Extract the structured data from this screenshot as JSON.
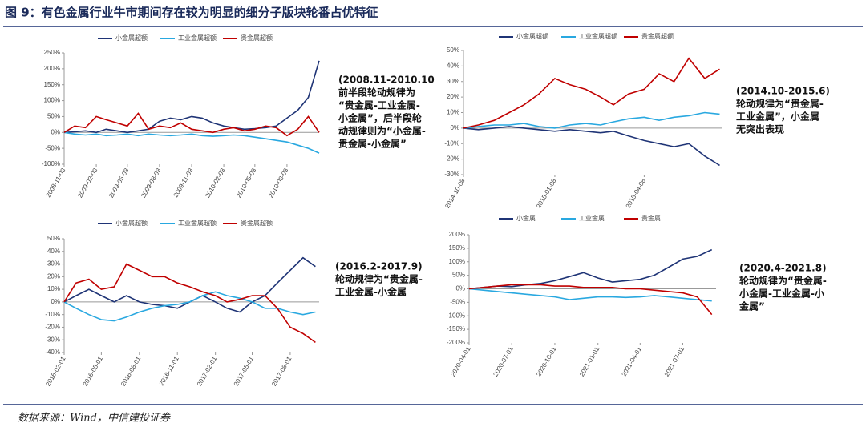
{
  "title": "图 9：有色金属行业牛市期间存在较为明显的细分子版块轮番占优特征",
  "source": "数据来源：Wind，中信建投证券",
  "chart_data": [
    {
      "type": "line",
      "x": [
        "2008-11-03",
        "2008-12-03",
        "2009-01-03",
        "2009-02-03",
        "2009-03-03",
        "2009-04-03",
        "2009-05-03",
        "2009-06-03",
        "2009-07-03",
        "2009-08-03",
        "2009-09-03",
        "2009-10-03",
        "2009-11-03",
        "2009-12-03",
        "2010-01-03",
        "2010-02-03",
        "2010-03-03",
        "2010-04-03",
        "2010-05-03",
        "2010-06-03",
        "2010-07-03",
        "2010-08-03",
        "2010-09-03",
        "2010-10-03",
        "2010-11-03"
      ],
      "xlim": [
        "2008-11-03",
        "2010-11-03"
      ],
      "xticks": [
        "2008-11-03",
        "2009-02-03",
        "2009-05-03",
        "2009-08-03",
        "2009-11-03",
        "2010-02-03",
        "2010-05-03",
        "2010-08-03"
      ],
      "ylim": [
        -100,
        250
      ],
      "yticks": [
        {
          "value": -100,
          "label": "-100%"
        },
        {
          "value": -50,
          "label": "-50%"
        },
        {
          "value": 0,
          "label": "0%"
        },
        {
          "value": 50,
          "label": "50%"
        },
        {
          "value": 100,
          "label": "100%"
        },
        {
          "value": 150,
          "label": "150%"
        },
        {
          "value": 200,
          "label": "200%"
        },
        {
          "value": 250,
          "label": "250%"
        }
      ],
      "series": [
        {
          "name": "小金属超额",
          "color": "#1f3476",
          "values": [
            0,
            2,
            5,
            0,
            10,
            5,
            0,
            5,
            10,
            35,
            45,
            40,
            50,
            45,
            30,
            20,
            15,
            10,
            12,
            15,
            20,
            45,
            70,
            110,
            225
          ]
        },
        {
          "name": "工业金属超额",
          "color": "#29a8e0",
          "values": [
            0,
            -5,
            -8,
            -5,
            -10,
            -8,
            -5,
            -10,
            -5,
            -8,
            -10,
            -8,
            -5,
            -10,
            -12,
            -10,
            -8,
            -10,
            -15,
            -20,
            -25,
            -30,
            -40,
            -50,
            -65
          ]
        },
        {
          "name": "贵金属超额",
          "color": "#c00000",
          "values": [
            0,
            20,
            15,
            50,
            40,
            30,
            20,
            60,
            10,
            20,
            15,
            30,
            10,
            5,
            0,
            10,
            15,
            5,
            10,
            20,
            15,
            -10,
            10,
            50,
            0
          ]
        }
      ],
      "annotation": [
        "(2008.11-2010.10",
        "前半段轮动规律为",
        "“贵金属-工业金属-",
        "小金属”，后半段轮",
        "动规律则为“小金属-",
        "贵金属-小金属”"
      ]
    },
    {
      "type": "line",
      "x": [
        "2014-10-08",
        "2014-10-23",
        "2014-11-08",
        "2014-11-23",
        "2014-12-08",
        "2014-12-23",
        "2015-01-08",
        "2015-01-23",
        "2015-02-08",
        "2015-02-23",
        "2015-03-08",
        "2015-03-23",
        "2015-04-08",
        "2015-04-23",
        "2015-05-08",
        "2015-05-23",
        "2015-06-08",
        "2015-06-23"
      ],
      "xlim": [
        "2014-10-08",
        "2015-06-25"
      ],
      "xticks": [
        "2014-10-08",
        "2015-01-08",
        "2015-04-08"
      ],
      "ylim": [
        -30,
        50
      ],
      "yticks": [
        {
          "value": -30,
          "label": "-30%"
        },
        {
          "value": -20,
          "label": "-20%"
        },
        {
          "value": -10,
          "label": "-10%"
        },
        {
          "value": 0,
          "label": "0%"
        },
        {
          "value": 10,
          "label": "10%"
        },
        {
          "value": 20,
          "label": "20%"
        },
        {
          "value": 30,
          "label": "30%"
        },
        {
          "value": 40,
          "label": "40%"
        },
        {
          "value": 50,
          "label": "50%"
        }
      ],
      "series": [
        {
          "name": "小金属超额",
          "color": "#1f3476",
          "values": [
            0,
            -1,
            0,
            1,
            0,
            -1,
            -2,
            -1,
            -2,
            -3,
            -2,
            -5,
            -8,
            -10,
            -12,
            -10,
            -18,
            -24
          ]
        },
        {
          "name": "工业金属超额",
          "color": "#29a8e0",
          "values": [
            0,
            1,
            2,
            2,
            3,
            1,
            0,
            2,
            3,
            2,
            4,
            6,
            7,
            5,
            7,
            8,
            10,
            9
          ]
        },
        {
          "name": "贵金属超额",
          "color": "#c00000",
          "values": [
            0,
            2,
            5,
            10,
            15,
            22,
            32,
            28,
            25,
            20,
            15,
            22,
            25,
            35,
            30,
            45,
            32,
            38
          ]
        }
      ],
      "annotation": [
        "(2014.10-2015.6)",
        "轮动规律为“贵金属-",
        "工业金属”，小金属",
        "无突出表现"
      ]
    },
    {
      "type": "line",
      "x": [
        "2016-02-01",
        "2016-03-01",
        "2016-04-01",
        "2016-05-01",
        "2016-06-01",
        "2016-07-01",
        "2016-08-01",
        "2016-09-01",
        "2016-10-01",
        "2016-11-01",
        "2016-12-01",
        "2017-01-01",
        "2017-02-01",
        "2017-03-01",
        "2017-04-01",
        "2017-05-01",
        "2017-06-01",
        "2017-07-01",
        "2017-08-01",
        "2017-09-01",
        "2017-10-01"
      ],
      "xlim": [
        "2016-02-01",
        "2017-10-10"
      ],
      "xticks": [
        "2016-02-01",
        "2016-05-01",
        "2016-08-01",
        "2016-11-01",
        "2017-02-01",
        "2017-05-01",
        "2017-08-01"
      ],
      "ylim": [
        -40,
        50
      ],
      "yticks": [
        {
          "value": -40,
          "label": "-40%"
        },
        {
          "value": -30,
          "label": "-30%"
        },
        {
          "value": -20,
          "label": "-20%"
        },
        {
          "value": -10,
          "label": "-10%"
        },
        {
          "value": 0,
          "label": "0%"
        },
        {
          "value": 10,
          "label": "10%"
        },
        {
          "value": 20,
          "label": "20%"
        },
        {
          "value": 30,
          "label": "30%"
        },
        {
          "value": 40,
          "label": "40%"
        },
        {
          "value": 50,
          "label": "50%"
        }
      ],
      "series": [
        {
          "name": "小金属超额",
          "color": "#1f3476",
          "values": [
            0,
            5,
            10,
            5,
            0,
            5,
            0,
            -2,
            -3,
            -5,
            0,
            5,
            0,
            -5,
            -8,
            0,
            5,
            15,
            25,
            35,
            28
          ]
        },
        {
          "name": "工业金属超额",
          "color": "#29a8e0",
          "values": [
            0,
            -5,
            -10,
            -14,
            -15,
            -12,
            -8,
            -5,
            -3,
            -2,
            0,
            5,
            8,
            5,
            3,
            0,
            -5,
            -5,
            -8,
            -10,
            -8
          ]
        },
        {
          "name": "贵金属超额",
          "color": "#c00000",
          "values": [
            0,
            15,
            18,
            10,
            12,
            30,
            25,
            20,
            20,
            15,
            12,
            8,
            5,
            0,
            2,
            5,
            5,
            -5,
            -20,
            -25,
            -32
          ]
        }
      ],
      "annotation": [
        "(2016.2-2017.9)",
        "轮动规律为“贵金属-",
        "工业金属-小金属"
      ]
    },
    {
      "type": "line",
      "x": [
        "2020-04-01",
        "2020-05-01",
        "2020-06-01",
        "2020-07-01",
        "2020-08-01",
        "2020-09-01",
        "2020-10-01",
        "2020-11-01",
        "2020-12-01",
        "2021-01-01",
        "2021-02-01",
        "2021-03-01",
        "2021-04-01",
        "2021-05-01",
        "2021-06-01",
        "2021-07-01",
        "2021-08-01",
        "2021-09-01"
      ],
      "xlim": [
        "2020-04-01",
        "2021-09-10"
      ],
      "xticks": [
        "2020-04-01",
        "2020-07-01",
        "2020-10-01",
        "2021-01-01",
        "2021-04-01",
        "2021-07-01"
      ],
      "ylim": [
        -200,
        200
      ],
      "yticks": [
        {
          "value": -200,
          "label": "-200%"
        },
        {
          "value": -150,
          "label": "-150%"
        },
        {
          "value": -100,
          "label": "-100%"
        },
        {
          "value": -50,
          "label": "-50%"
        },
        {
          "value": 0,
          "label": "0%"
        },
        {
          "value": 50,
          "label": "50%"
        },
        {
          "value": 100,
          "label": "100%"
        },
        {
          "value": 150,
          "label": "150%"
        },
        {
          "value": 200,
          "label": "200%"
        }
      ],
      "series": [
        {
          "name": "小金属",
          "color": "#1f3476",
          "values": [
            0,
            5,
            10,
            8,
            15,
            20,
            30,
            45,
            60,
            40,
            25,
            30,
            35,
            50,
            80,
            110,
            120,
            145
          ]
        },
        {
          "name": "工业金属",
          "color": "#29a8e0",
          "values": [
            0,
            -5,
            -10,
            -15,
            -20,
            -25,
            -30,
            -40,
            -35,
            -30,
            -30,
            -32,
            -30,
            -25,
            -30,
            -35,
            -40,
            -45
          ]
        },
        {
          "name": "贵金属",
          "color": "#c00000",
          "values": [
            0,
            5,
            10,
            15,
            15,
            15,
            10,
            10,
            5,
            5,
            5,
            0,
            0,
            -5,
            -10,
            -15,
            -30,
            -95
          ]
        }
      ],
      "annotation": [
        "(2020.4-2021.8)",
        "轮动规律为“贵金属-",
        "小金属-工业金属-小",
        "金属”"
      ]
    }
  ]
}
